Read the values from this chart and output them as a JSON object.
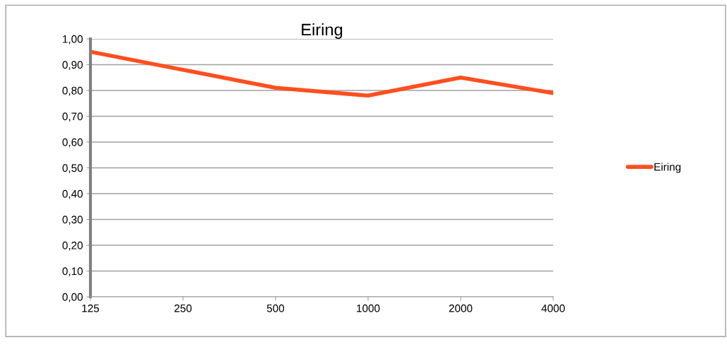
{
  "chart_data": {
    "type": "line",
    "title": "Eiring",
    "categories": [
      "125",
      "250",
      "500",
      "1000",
      "2000",
      "4000"
    ],
    "series": [
      {
        "name": "Eiring",
        "color": "#ff4f1f",
        "values": [
          0.95,
          0.88,
          0.81,
          0.78,
          0.85,
          0.79
        ]
      }
    ],
    "ylim": [
      0,
      1
    ],
    "yticks": [
      {
        "value": 0,
        "label": "0,00"
      },
      {
        "value": 0.1,
        "label": "0,10"
      },
      {
        "value": 0.2,
        "label": "0,20"
      },
      {
        "value": 0.3,
        "label": "0,30"
      },
      {
        "value": 0.4,
        "label": "0,40"
      },
      {
        "value": 0.5,
        "label": "0,50"
      },
      {
        "value": 0.6,
        "label": "0,60"
      },
      {
        "value": 0.7,
        "label": "0,70"
      },
      {
        "value": 0.8,
        "label": "0,80"
      },
      {
        "value": 0.9,
        "label": "0,90"
      },
      {
        "value": 1.0,
        "label": "1,00"
      }
    ],
    "grid": "y",
    "legend": "right",
    "marker": "none",
    "line_style": "solid"
  }
}
